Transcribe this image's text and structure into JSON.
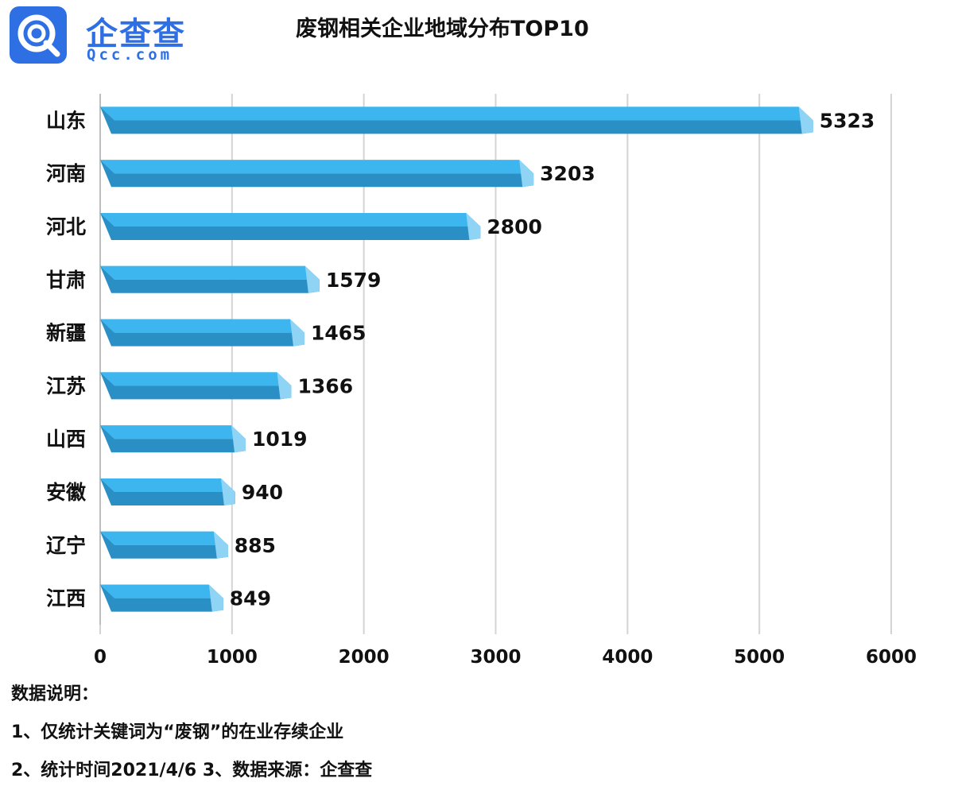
{
  "logo": {
    "icon": "qcc-logo-icon",
    "text_cn": "企查查",
    "text_en": "Qcc.com",
    "color": "#2f6fe4"
  },
  "chart_data": {
    "type": "bar",
    "orientation": "horizontal",
    "title": "废钢相关企业地域分布TOP10",
    "categories": [
      "山东",
      "河南",
      "河北",
      "甘肃",
      "新疆",
      "江苏",
      "山西",
      "安徽",
      "辽宁",
      "江西"
    ],
    "values": [
      5323,
      3203,
      2800,
      1579,
      1465,
      1366,
      1019,
      940,
      885,
      849
    ],
    "xlim": [
      0,
      6000
    ],
    "xticks": [
      0,
      1000,
      2000,
      3000,
      4000,
      5000,
      6000
    ],
    "xlabel": "",
    "ylabel": "",
    "grid": true,
    "bar_color": "#3db5ee",
    "bar_shade": "#2a8fc4"
  },
  "notes": {
    "heading": "数据说明：",
    "line1": "1、仅统计关键词为“废钢”的在业存续企业",
    "line2": "2、统计时间2021/4/6   3、数据来源：企查查"
  }
}
